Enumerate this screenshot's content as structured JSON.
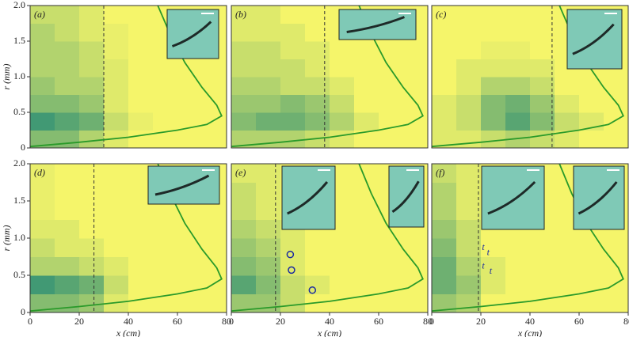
{
  "chart_data": [
    {
      "type": "heatmap",
      "label": "(a)",
      "ylabel": "r (mm)",
      "xlim": [
        0,
        80
      ],
      "ylim": [
        0,
        2
      ],
      "yticks": [
        0,
        0.5,
        {
          "value": 1,
          "label": "1.0"
        },
        1.5,
        {
          "value": 2,
          "label": "2.0"
        }
      ],
      "x_bins": [
        0,
        10,
        20,
        30,
        40,
        50,
        60,
        70,
        80
      ],
      "r_bins": [
        0,
        0.25,
        0.5,
        0.75,
        1,
        1.25,
        1.5,
        1.75,
        2
      ],
      "values": [
        [
          0.5,
          0.5,
          0.3,
          0.1,
          0,
          0,
          0,
          0
        ],
        [
          0.8,
          0.7,
          0.6,
          0.2,
          0.05,
          0,
          0,
          0
        ],
        [
          0.5,
          0.5,
          0.4,
          0.1,
          0,
          0,
          0,
          0
        ],
        [
          0.4,
          0.3,
          0.3,
          0.1,
          0,
          0,
          0,
          0
        ],
        [
          0.3,
          0.3,
          0.2,
          0.1,
          0,
          0,
          0,
          0
        ],
        [
          0.3,
          0.3,
          0.2,
          0.05,
          0,
          0,
          0,
          0
        ],
        [
          0.3,
          0.2,
          0.1,
          0.05,
          0,
          0,
          0,
          0
        ],
        [
          0.2,
          0.2,
          0.1,
          0,
          0,
          0,
          0,
          0
        ]
      ],
      "envelope": {
        "x": [
          0,
          20,
          40,
          60,
          72,
          78,
          76,
          70,
          63,
          57,
          52
        ],
        "r": [
          0.02,
          0.08,
          0.15,
          0.25,
          0.33,
          0.45,
          0.6,
          0.85,
          1.2,
          1.6,
          2
        ]
      },
      "dashed_x": 30
    },
    {
      "type": "heatmap",
      "label": "(b)",
      "xlim": [
        0,
        80
      ],
      "ylim": [
        0,
        2
      ],
      "x_bins": [
        0,
        10,
        20,
        30,
        40,
        50,
        60,
        70,
        80
      ],
      "r_bins": [
        0,
        0.25,
        0.5,
        0.75,
        1,
        1.25,
        1.5,
        1.75,
        2
      ],
      "values": [
        [
          0.3,
          0.3,
          0.3,
          0.2,
          0.1,
          0,
          0,
          0
        ],
        [
          0.5,
          0.6,
          0.6,
          0.5,
          0.3,
          0.1,
          0,
          0
        ],
        [
          0.4,
          0.4,
          0.5,
          0.4,
          0.2,
          0,
          0,
          0
        ],
        [
          0.3,
          0.3,
          0.2,
          0.2,
          0.1,
          0,
          0,
          0
        ],
        [
          0.2,
          0.2,
          0.2,
          0.1,
          0,
          0,
          0,
          0
        ],
        [
          0.2,
          0.2,
          0.1,
          0.1,
          0,
          0,
          0,
          0
        ],
        [
          0.1,
          0.1,
          0.1,
          0,
          0,
          0,
          0,
          0
        ],
        [
          0.1,
          0.1,
          0,
          0,
          0,
          0,
          0,
          0
        ]
      ],
      "envelope": {
        "x": [
          0,
          20,
          40,
          60,
          72,
          78,
          76,
          70,
          63,
          57,
          52
        ],
        "r": [
          0.02,
          0.08,
          0.15,
          0.25,
          0.33,
          0.45,
          0.6,
          0.85,
          1.2,
          1.6,
          2
        ]
      },
      "dashed_x": 38
    },
    {
      "type": "heatmap",
      "label": "(c)",
      "xlim": [
        0,
        80
      ],
      "ylim": [
        0,
        2
      ],
      "x_bins": [
        0,
        10,
        20,
        30,
        40,
        50,
        60,
        70,
        80
      ],
      "r_bins": [
        0,
        0.25,
        0.5,
        0.75,
        1,
        1.25,
        1.5,
        1.75,
        2
      ],
      "values": [
        [
          0.1,
          0.1,
          0.2,
          0.3,
          0.2,
          0.1,
          0,
          0
        ],
        [
          0.1,
          0.2,
          0.5,
          0.7,
          0.5,
          0.2,
          0.1,
          0
        ],
        [
          0.1,
          0.2,
          0.5,
          0.6,
          0.4,
          0.1,
          0,
          0
        ],
        [
          0,
          0.1,
          0.3,
          0.3,
          0.2,
          0,
          0,
          0
        ],
        [
          0,
          0.1,
          0.1,
          0.1,
          0.1,
          0,
          0,
          0
        ],
        [
          0,
          0,
          0.05,
          0.05,
          0,
          0,
          0,
          0
        ],
        [
          0,
          0,
          0,
          0,
          0,
          0,
          0,
          0
        ],
        [
          0,
          0,
          0,
          0,
          0,
          0,
          0,
          0
        ]
      ],
      "envelope": {
        "x": [
          0,
          20,
          40,
          60,
          72,
          78,
          76,
          70,
          63,
          57,
          52
        ],
        "r": [
          0.02,
          0.08,
          0.15,
          0.25,
          0.33,
          0.45,
          0.6,
          0.85,
          1.2,
          1.6,
          2
        ]
      },
      "dashed_x": 49
    },
    {
      "type": "heatmap",
      "label": "(d)",
      "ylabel": "r (mm)",
      "xlabel": "x (cm)",
      "xlim": [
        0,
        80
      ],
      "ylim": [
        0,
        2
      ],
      "yticks": [
        0,
        0.5,
        {
          "value": 1,
          "label": "1.0"
        },
        1.5,
        {
          "value": 2,
          "label": "2.0"
        }
      ],
      "xticks": [
        0,
        20,
        40,
        60,
        80
      ],
      "x_bins": [
        0,
        10,
        20,
        30,
        40,
        50,
        60,
        70,
        80
      ],
      "r_bins": [
        0,
        0.25,
        0.5,
        0.75,
        1,
        1.25,
        1.5,
        1.75,
        2
      ],
      "values": [
        [
          0.5,
          0.5,
          0.4,
          0.1,
          0,
          0,
          0,
          0
        ],
        [
          0.8,
          0.7,
          0.6,
          0.2,
          0,
          0,
          0,
          0
        ],
        [
          0.3,
          0.3,
          0.2,
          0.1,
          0,
          0,
          0,
          0
        ],
        [
          0.2,
          0.1,
          0.1,
          0,
          0,
          0,
          0,
          0
        ],
        [
          0.1,
          0.1,
          0,
          0,
          0,
          0,
          0,
          0
        ],
        [
          0.05,
          0,
          0,
          0,
          0,
          0,
          0,
          0
        ],
        [
          0.05,
          0,
          0,
          0,
          0,
          0,
          0,
          0
        ],
        [
          0.05,
          0,
          0,
          0,
          0,
          0,
          0,
          0
        ]
      ],
      "envelope": {
        "x": [
          0,
          20,
          40,
          60,
          72,
          78,
          76,
          70,
          63,
          57,
          52
        ],
        "r": [
          0.02,
          0.08,
          0.15,
          0.25,
          0.33,
          0.45,
          0.6,
          0.85,
          1.2,
          1.6,
          2
        ]
      },
      "dashed_x": 26
    },
    {
      "type": "heatmap",
      "label": "(e)",
      "xlabel": "x (cm)",
      "xlim": [
        0,
        80
      ],
      "ylim": [
        0,
        2
      ],
      "xticks": [
        0,
        20,
        40,
        60,
        80
      ],
      "x_bins": [
        0,
        10,
        20,
        30,
        40,
        50,
        60,
        70,
        80
      ],
      "r_bins": [
        0,
        0.25,
        0.5,
        0.75,
        1,
        1.25,
        1.5,
        1.75,
        2
      ],
      "values": [
        [
          0.4,
          0.4,
          0.2,
          0,
          0,
          0,
          0,
          0
        ],
        [
          0.7,
          0.5,
          0.2,
          0.1,
          0,
          0,
          0,
          0
        ],
        [
          0.5,
          0.4,
          0.1,
          0,
          0,
          0,
          0,
          0
        ],
        [
          0.4,
          0.3,
          0.1,
          0,
          0,
          0,
          0,
          0
        ],
        [
          0.3,
          0.2,
          0.1,
          0,
          0,
          0,
          0,
          0
        ],
        [
          0.2,
          0.1,
          0,
          0,
          0,
          0,
          0,
          0
        ],
        [
          0.2,
          0.1,
          0,
          0,
          0,
          0,
          0,
          0
        ],
        [
          0.1,
          0.1,
          0,
          0,
          0,
          0,
          0,
          0
        ]
      ],
      "envelope": {
        "x": [
          0,
          20,
          40,
          60,
          72,
          78,
          76,
          70,
          63,
          57,
          52
        ],
        "r": [
          0.02,
          0.08,
          0.15,
          0.25,
          0.33,
          0.45,
          0.6,
          0.85,
          1.2,
          1.6,
          2
        ]
      },
      "dashed_x": 18,
      "circles": {
        "x": [
          24,
          24.5,
          33
        ],
        "r": [
          0.78,
          0.57,
          0.3
        ]
      }
    },
    {
      "type": "heatmap",
      "label": "(f)",
      "xlabel": "x (cm)",
      "xlim": [
        0,
        80
      ],
      "ylim": [
        0,
        2
      ],
      "xticks": [
        0,
        20,
        40,
        60,
        80
      ],
      "x_bins": [
        0,
        10,
        20,
        30,
        40,
        50,
        60,
        70,
        80
      ],
      "r_bins": [
        0,
        0.25,
        0.5,
        0.75,
        1,
        1.25,
        1.5,
        1.75,
        2
      ],
      "values": [
        [
          0.4,
          0.3,
          0,
          0,
          0,
          0,
          0,
          0
        ],
        [
          0.6,
          0.4,
          0.1,
          0,
          0,
          0,
          0,
          0
        ],
        [
          0.6,
          0.3,
          0.1,
          0,
          0,
          0,
          0,
          0
        ],
        [
          0.5,
          0.2,
          0,
          0,
          0,
          0,
          0,
          0
        ],
        [
          0.4,
          0.2,
          0,
          0,
          0,
          0,
          0,
          0
        ],
        [
          0.3,
          0.1,
          0,
          0,
          0,
          0,
          0,
          0
        ],
        [
          0.3,
          0.1,
          0,
          0,
          0,
          0,
          0,
          0
        ],
        [
          0.2,
          0.1,
          0,
          0,
          0,
          0,
          0,
          0
        ]
      ],
      "envelope": {
        "x": [
          0,
          20,
          40,
          60,
          72,
          78,
          76,
          70,
          63,
          57,
          52
        ],
        "r": [
          0.02,
          0.08,
          0.15,
          0.25,
          0.33,
          0.45,
          0.6,
          0.85,
          1.2,
          1.6,
          2
        ]
      },
      "dashed_x": 19,
      "t_label": "t",
      "t_points": {
        "x": [
          21,
          23,
          21,
          24
        ],
        "r": [
          0.87,
          0.8,
          0.62,
          0.55
        ]
      }
    }
  ]
}
